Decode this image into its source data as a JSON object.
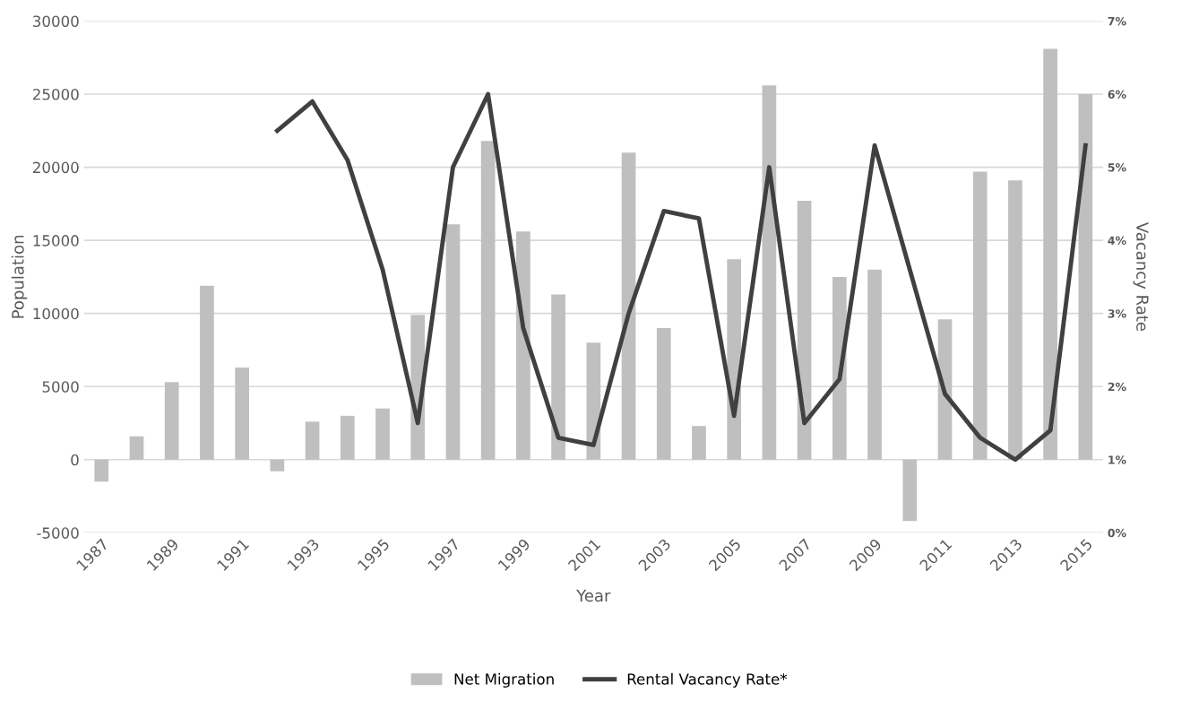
{
  "chart_data": {
    "type": "bar",
    "xlabel": "Year",
    "ylabel": "Population",
    "y2label": "Vacancy Rate",
    "categories": [
      "1987",
      null,
      "1989",
      null,
      "1991",
      null,
      "1993",
      null,
      "1995",
      null,
      "1997",
      null,
      "1999",
      null,
      "2001",
      null,
      "2003",
      null,
      "2005",
      null,
      "2007",
      null,
      "2009",
      null,
      "2011",
      null,
      "2013",
      null,
      "2015"
    ],
    "series": [
      {
        "name": "Net Migration",
        "color": "#bfbfbf",
        "values": [
          -1500,
          1600,
          5300,
          11900,
          6300,
          -800,
          2600,
          3000,
          3500,
          9900,
          16100,
          21800,
          15600,
          11300,
          8000,
          21000,
          9000,
          2300,
          13700,
          25600,
          17700,
          12500,
          13000,
          -4200,
          9600,
          19700,
          19100,
          28100,
          25000
        ]
      },
      {
        "name": "Rental Vacancy Rate*",
        "type": "line",
        "axis": "y2",
        "color": "#404040",
        "values": [
          null,
          null,
          null,
          null,
          null,
          5.5,
          5.9,
          5.1,
          3.6,
          1.5,
          5.0,
          6.0,
          2.8,
          1.3,
          1.2,
          3.0,
          4.4,
          4.3,
          1.6,
          5.0,
          1.5,
          2.1,
          5.3,
          3.6,
          1.9,
          1.3,
          1.0,
          1.4,
          5.3
        ]
      }
    ],
    "ylim": [
      -5000,
      30000
    ],
    "yticks": [
      -5000,
      0,
      5000,
      10000,
      15000,
      20000,
      25000,
      30000
    ],
    "y2lim": [
      0,
      7
    ],
    "y2ticks": [
      {
        "value": 0,
        "label": "0%"
      },
      {
        "value": 1,
        "label": "1%"
      },
      {
        "value": 2,
        "label": "2%"
      },
      {
        "value": 3,
        "label": "3%"
      },
      {
        "value": 4,
        "label": "4%"
      },
      {
        "value": 5,
        "label": "5%"
      },
      {
        "value": 6,
        "label": "6%"
      },
      {
        "value": 7,
        "label": "7%"
      }
    ],
    "grid": "y",
    "legend": "bottom",
    "marker": "none",
    "line_style": "solid"
  }
}
